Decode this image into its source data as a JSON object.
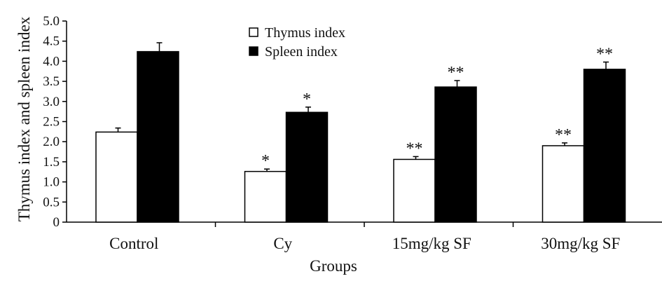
{
  "chart_data": {
    "type": "bar",
    "title": "",
    "xlabel": "Groups",
    "ylabel": "Thymus index and spleen index",
    "ylim": [
      0,
      5.0
    ],
    "yticks": [
      "0",
      "0.5",
      "1.0",
      "1.5",
      "2.0",
      "2.5",
      "3.0",
      "3.5",
      "4.0",
      "4.5",
      "5.0"
    ],
    "categories": [
      "Control",
      "Cy",
      "15mg/kg SF",
      "30mg/kg SF"
    ],
    "series": [
      {
        "name": "Thymus index",
        "color": "#ffffff",
        "values": [
          2.24,
          1.26,
          1.56,
          1.9
        ],
        "errors": [
          0.1,
          0.06,
          0.07,
          0.07
        ],
        "significance": [
          "",
          "*",
          "**",
          "**"
        ]
      },
      {
        "name": "Spleen index",
        "color": "#000000",
        "values": [
          4.24,
          2.73,
          3.36,
          3.8
        ],
        "errors": [
          0.22,
          0.13,
          0.16,
          0.18
        ],
        "significance": [
          "",
          "*",
          "**",
          "**"
        ]
      }
    ],
    "legend": "top-center",
    "grid": false
  }
}
